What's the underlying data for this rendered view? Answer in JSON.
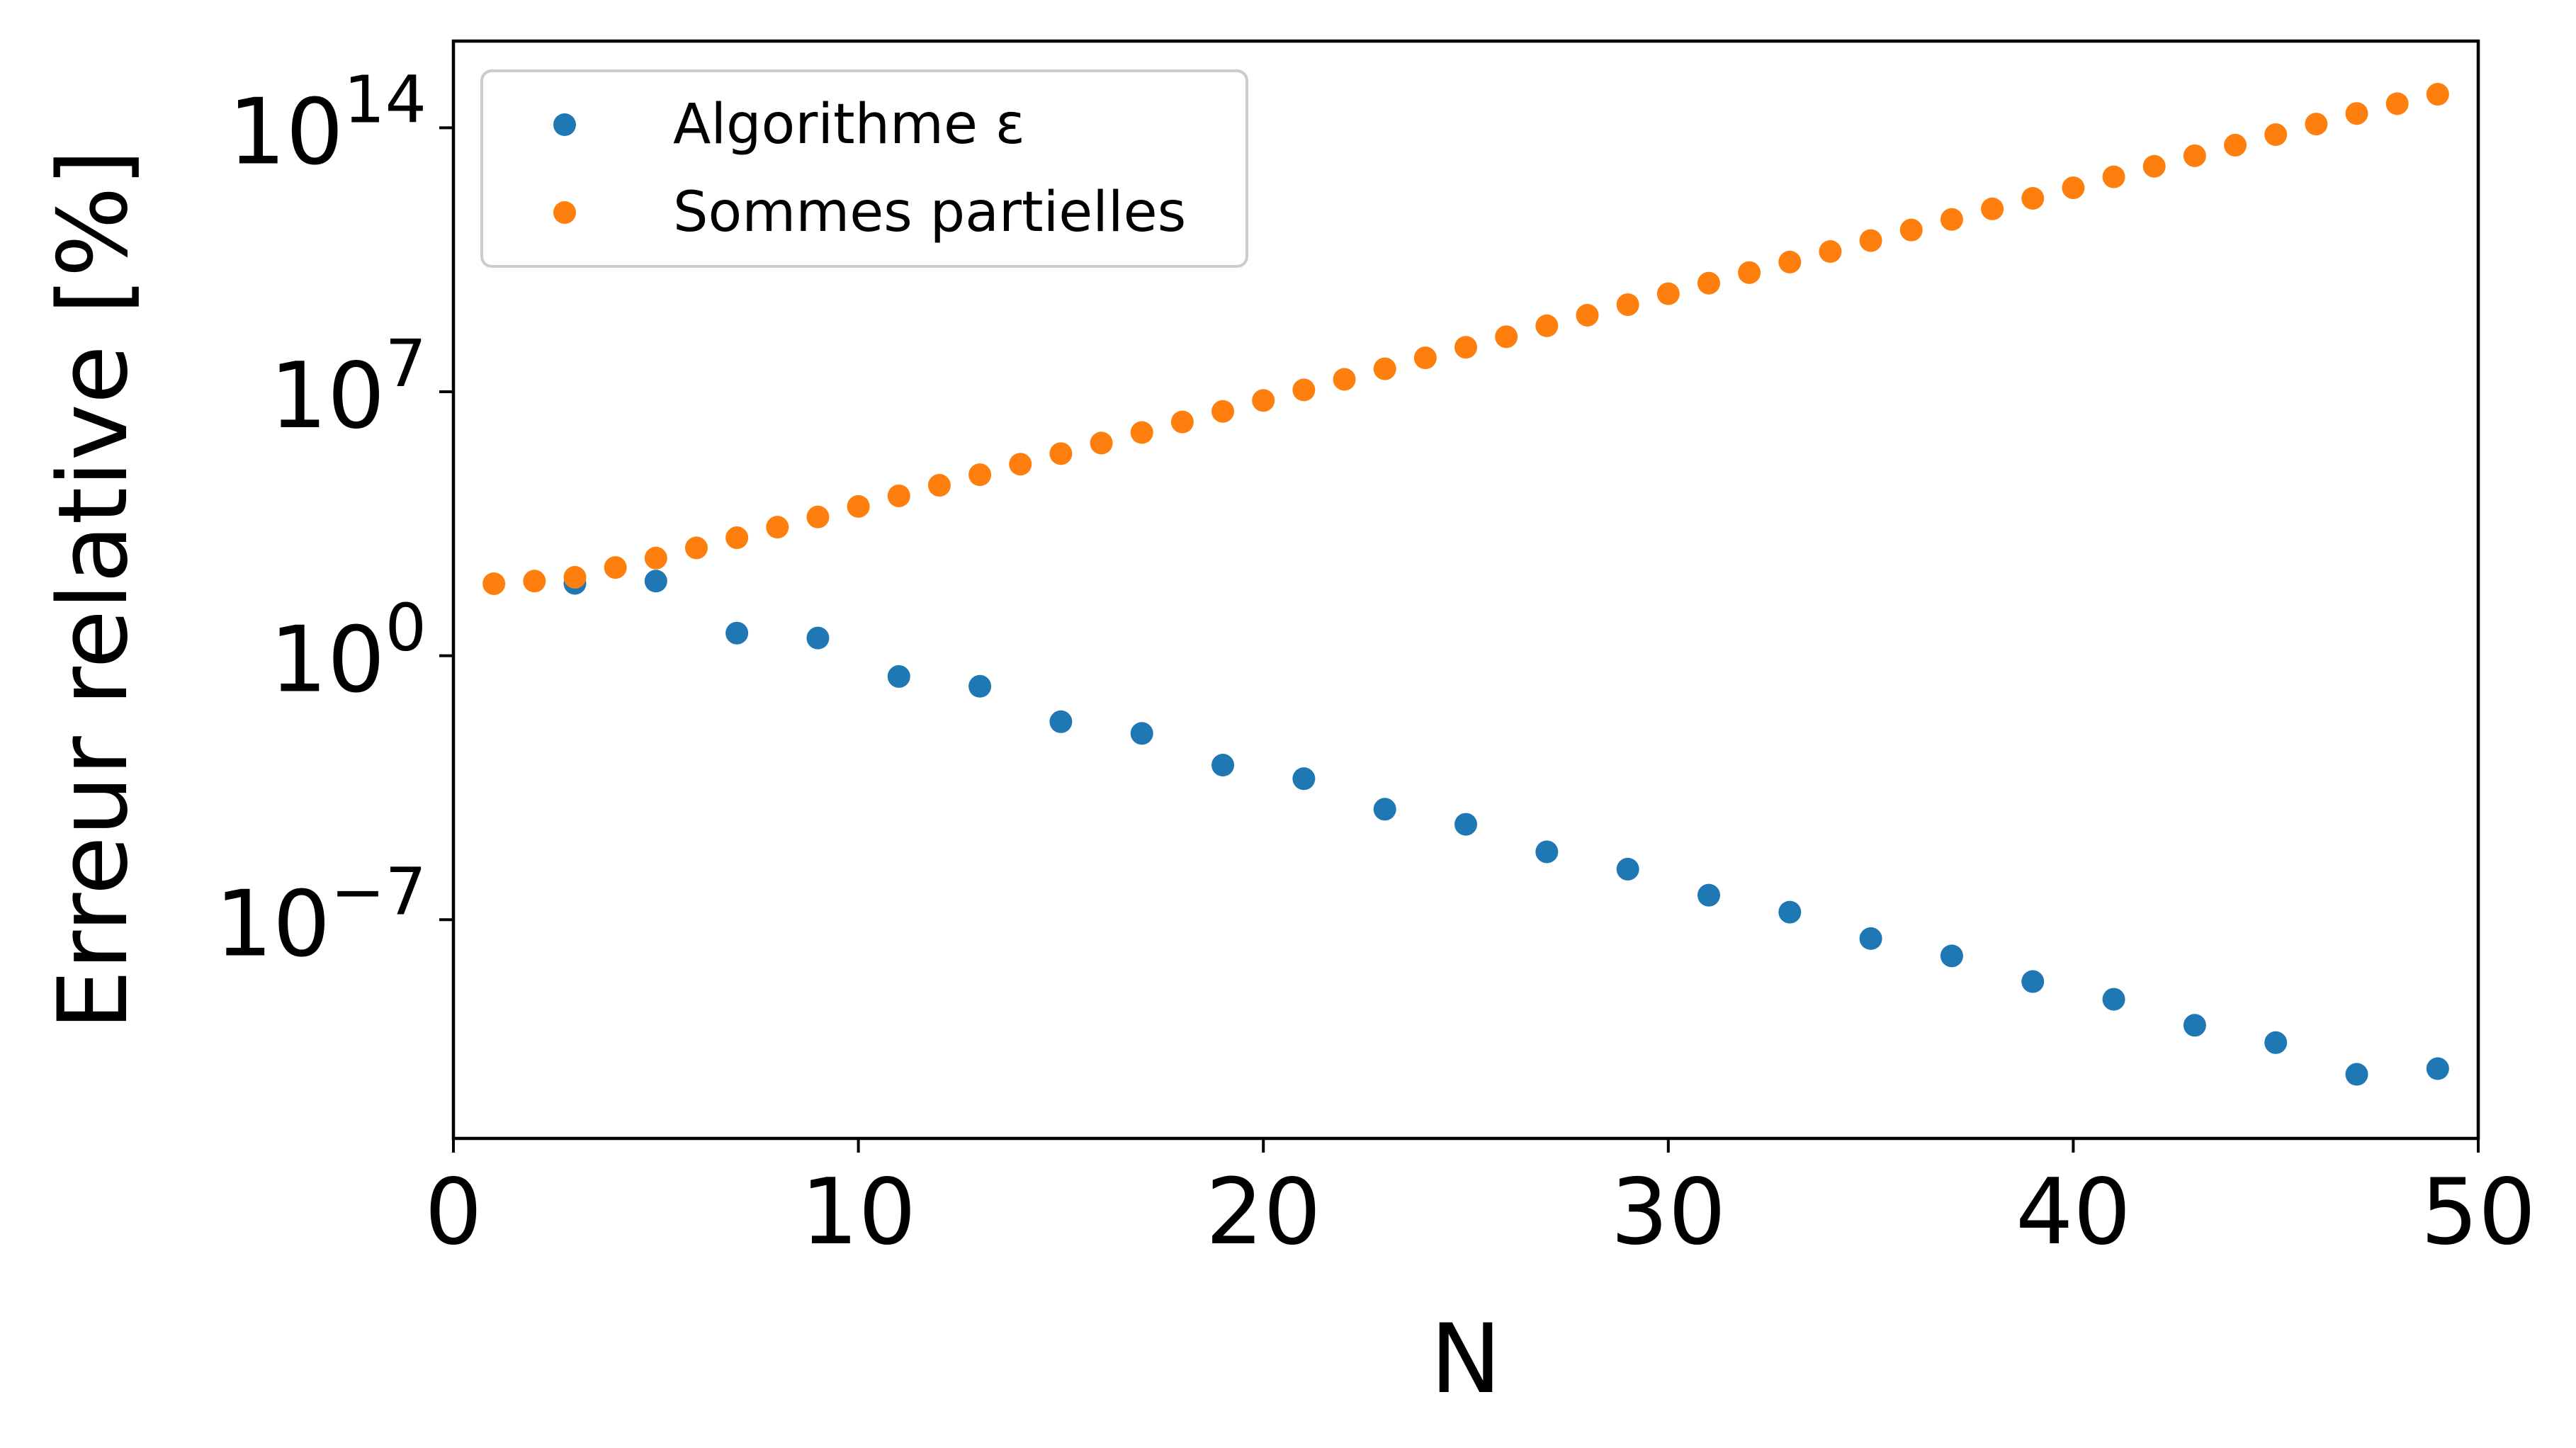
{
  "chart_data": {
    "type": "scatter",
    "xlabel": "N",
    "ylabel": "Erreur relative [%]",
    "xlim": [
      0,
      50
    ],
    "ylim_log10": [
      -12.8,
      16.3
    ],
    "y_scale": "log",
    "grid": false,
    "legend_placement": "top-left",
    "x_ticks": [
      {
        "value": 0,
        "label": "0"
      },
      {
        "value": 10,
        "label": "10"
      },
      {
        "value": 20,
        "label": "20"
      },
      {
        "value": 30,
        "label": "30"
      },
      {
        "value": 40,
        "label": "40"
      },
      {
        "value": 50,
        "label": "50"
      }
    ],
    "y_ticks": [
      {
        "exp": 14,
        "base": "10",
        "sup": "14"
      },
      {
        "exp": 7,
        "base": "10",
        "sup": "7"
      },
      {
        "exp": 0,
        "base": "10",
        "sup": "0"
      },
      {
        "exp": -7,
        "base": "10",
        "sup": "−7"
      }
    ],
    "series": [
      {
        "name": "Algorithme ε",
        "color": "#1f77b4",
        "x": [
          3,
          5,
          7,
          9,
          11,
          13,
          15,
          17,
          19,
          21,
          23,
          25,
          27,
          29,
          31,
          33,
          35,
          37,
          39,
          41,
          43,
          45,
          47,
          49
        ],
        "log10_y": [
          1.92,
          1.98,
          0.6,
          0.47,
          -0.55,
          -0.81,
          -1.75,
          -2.06,
          -2.9,
          -3.26,
          -4.07,
          -4.47,
          -5.2,
          -5.66,
          -6.35,
          -6.8,
          -7.5,
          -7.96,
          -8.64,
          -9.11,
          -9.8,
          -10.26,
          -11.1,
          -10.95
        ],
        "y_note": "values shown as powers of ten (log10 of relative error)"
      },
      {
        "name": "Sommes partielles",
        "color": "#ff7f0e",
        "x": [
          1,
          2,
          3,
          4,
          5,
          6,
          7,
          8,
          9,
          10,
          11,
          12,
          13,
          14,
          15,
          16,
          17,
          18,
          19,
          20,
          21,
          22,
          23,
          24,
          25,
          26,
          27,
          28,
          29,
          30,
          31,
          32,
          33,
          34,
          35,
          36,
          37,
          38,
          39,
          40,
          41,
          42,
          43,
          44,
          45,
          46,
          47,
          48,
          49
        ],
        "log10_y": [
          1.91,
          1.98,
          2.08,
          2.34,
          2.59,
          2.86,
          3.13,
          3.41,
          3.68,
          3.96,
          4.24,
          4.52,
          4.8,
          5.08,
          5.36,
          5.64,
          5.92,
          6.2,
          6.48,
          6.77,
          7.05,
          7.33,
          7.61,
          7.9,
          8.18,
          8.46,
          8.75,
          9.03,
          9.31,
          9.6,
          9.88,
          10.16,
          10.44,
          10.72,
          11.01,
          11.29,
          11.57,
          11.85,
          12.13,
          12.41,
          12.7,
          12.98,
          13.26,
          13.54,
          13.82,
          14.1,
          14.38,
          14.64,
          14.89
        ]
      }
    ]
  }
}
